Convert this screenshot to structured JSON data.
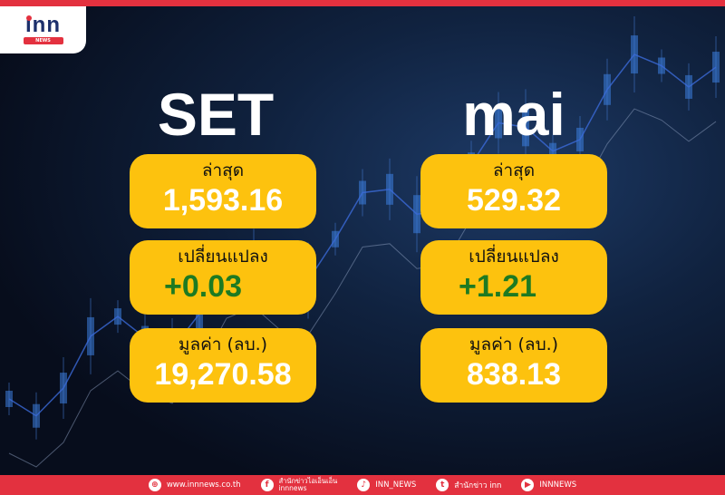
{
  "brand": {
    "logo_text": "inn",
    "logo_sub": "NEWS",
    "accent": "#e3313f",
    "card_color": "#fdc20e",
    "up_color": "#1d7a22"
  },
  "set": {
    "title": "SET",
    "last_label": "ล่าสุด",
    "last": "1,593.16",
    "change_label": "เปลี่ยนแปลง",
    "change": "+0.03",
    "value_label": "มูลค่า (ลบ.)",
    "value": "19,270.58"
  },
  "mai": {
    "title": "mai",
    "last_label": "ล่าสุด",
    "last": "529.32",
    "change_label": "เปลี่ยนแปลง",
    "change": "+1.21",
    "value_label": "มูลค่า (ลบ.)",
    "value": "838.13"
  },
  "footer": {
    "website": {
      "icon": "globe-icon",
      "text": "www.innnews.co.th"
    },
    "facebook": {
      "icon": "facebook-icon",
      "text": "สำนักข่าวไอเอ็นเอ็น",
      "sub": "innnews"
    },
    "tiktok": {
      "icon": "tiktok-icon",
      "text": "INN_NEWS"
    },
    "twitter": {
      "icon": "twitter-icon",
      "text": "สำนักข่าว inn"
    },
    "youtube": {
      "icon": "youtube-icon",
      "text": "INNNEWS"
    }
  }
}
